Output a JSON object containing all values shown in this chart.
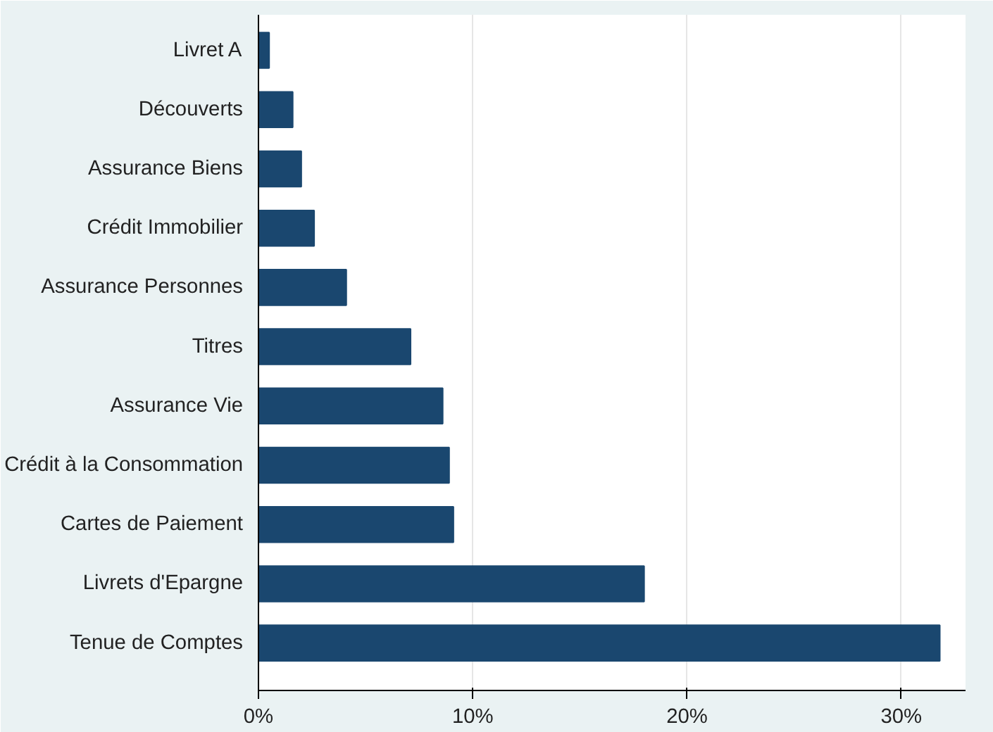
{
  "chart_data": {
    "type": "bar",
    "orientation": "horizontal",
    "categories": [
      "Livret A",
      "Découverts",
      "Assurance Biens",
      "Crédit Immobilier",
      "Assurance Personnes",
      "Titres",
      "Assurance Vie",
      "Crédit à la Consommation",
      "Cartes de Paiement",
      "Livrets d'Epargne",
      "Tenue de Comptes"
    ],
    "values": [
      0.5,
      1.6,
      2.0,
      2.6,
      4.1,
      7.1,
      8.6,
      8.9,
      9.1,
      18.0,
      31.8
    ],
    "color": "#1a476f",
    "xlim": [
      0,
      33
    ],
    "xticks": [
      {
        "value": 0,
        "label": "0%"
      },
      {
        "value": 10,
        "label": "10%"
      },
      {
        "value": 20,
        "label": "20%"
      },
      {
        "value": 30,
        "label": "30%"
      }
    ],
    "grid": "x"
  }
}
